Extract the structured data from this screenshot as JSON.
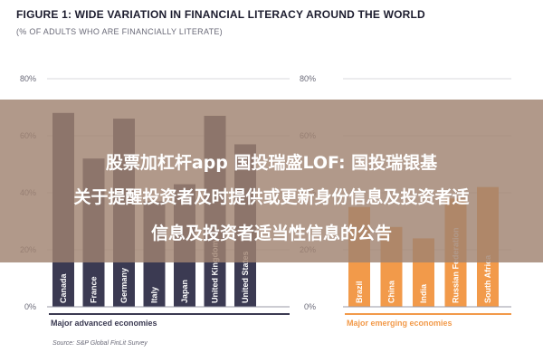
{
  "figure": {
    "title": "FIGURE 1: WIDE VARIATION IN FINANCIAL LITERACY AROUND THE WORLD",
    "subtitle": "(% OF ADULTS WHO ARE FINANCIALLY LITERATE)",
    "source": "Source: S&P Global FinLit Survey"
  },
  "colors": {
    "advanced": "#3b3a52",
    "emerging": "#f29a4a",
    "gridline": "#d8d8de"
  },
  "chart_data": {
    "type": "bar",
    "ylim": [
      0,
      80
    ],
    "yticks": [
      "0%",
      "20%",
      "40%",
      "60%",
      "80%"
    ],
    "grid": true,
    "groups": [
      {
        "name": "Major advanced economies",
        "categories": [
          "Canada",
          "France",
          "Germany",
          "Italy",
          "Japan",
          "United Kingdom",
          "United States"
        ],
        "values": [
          68,
          52,
          66,
          37,
          43,
          67,
          57
        ]
      },
      {
        "name": "Major emerging economies",
        "categories": [
          "Brazil",
          "China",
          "India",
          "Russian Federation",
          "South Africa"
        ],
        "values": [
          35,
          28,
          24,
          38,
          42
        ]
      }
    ]
  },
  "overlay": {
    "line1": "股票加杠杆app 国投瑞盛LOF: 国投瑞银基",
    "line2": "关于提醒投资者及时提供或更新身份信息及投资者适",
    "line3": "信息及投资者适当性信息的公告"
  }
}
